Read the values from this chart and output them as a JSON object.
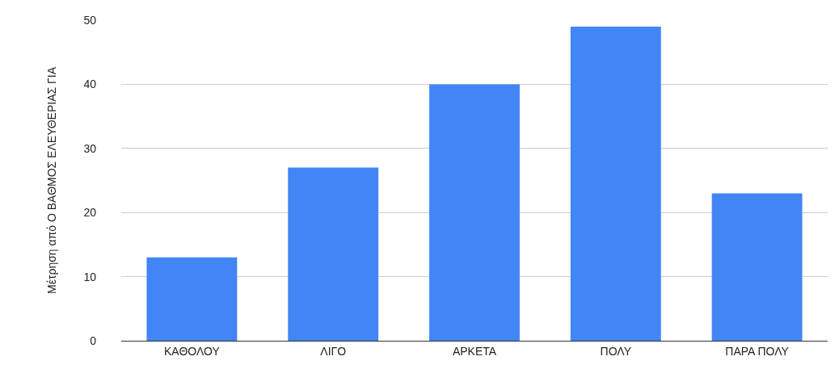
{
  "chart_data": {
    "type": "bar",
    "ylabel": "Μέτρηση από Ο ΒΑΘΜΟΣ ΕΛΕΥΘΕΡΙΑΣ ΓΙΑ",
    "categories": [
      "ΚΑΘΟΛΟΥ",
      "ΛΙΓΟ",
      "ΑΡΚΕΤΑ",
      "ΠΟΛΥ",
      "ΠΑΡΑ ΠΟΛΥ"
    ],
    "values": [
      13,
      27,
      40,
      49,
      23
    ],
    "color": "#4285f4",
    "ylim": [
      0,
      50
    ],
    "yticks": [
      0,
      10,
      20,
      30,
      40,
      50
    ],
    "grid": "y"
  }
}
